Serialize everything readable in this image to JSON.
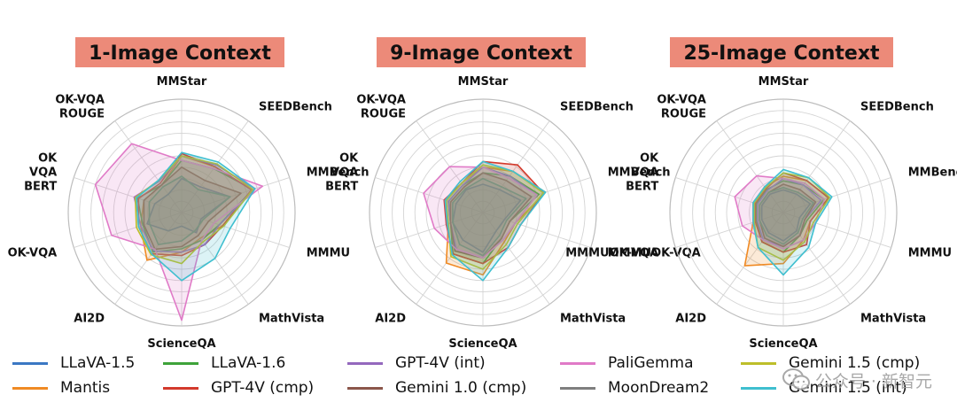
{
  "chart_data": [
    {
      "type": "radar",
      "title": "1-Image Context",
      "axes": [
        "MMStar",
        "SEEDBench",
        "MMBench",
        "MMMU",
        "MathVista",
        "ScienceQA",
        "AI2D",
        "OK-VQA",
        "OK\nVQA\nBERT",
        "OK-VQA\nROUGE"
      ],
      "rmax": 10,
      "series": [
        {
          "name": "LLaVA-1.5",
          "values": [
            3.0,
            2.8,
            4.5,
            1.8,
            2.2,
            1.2,
            2.0,
            3.2,
            2.5,
            2.0
          ]
        },
        {
          "name": "Mantis",
          "values": [
            5.0,
            5.0,
            6.5,
            3.8,
            2.8,
            3.5,
            5.2,
            3.8,
            3.5,
            3.0
          ]
        },
        {
          "name": "LLaVA-1.6",
          "values": [
            4.6,
            4.8,
            6.6,
            3.5,
            3.0,
            3.2,
            4.3,
            3.6,
            4.1,
            3.0
          ]
        },
        {
          "name": "GPT-4V (cmp)",
          "values": [
            5.2,
            5.0,
            6.5,
            3.8,
            3.5,
            3.8,
            4.5,
            4.0,
            4.0,
            3.2
          ]
        },
        {
          "name": "GPT-4V (int)",
          "values": [
            5.0,
            5.2,
            6.8,
            3.5,
            3.5,
            3.5,
            4.2,
            3.8,
            4.4,
            3.4
          ]
        },
        {
          "name": "Gemini 1.0 (cmp)",
          "values": [
            4.0,
            3.5,
            5.5,
            2.5,
            2.5,
            3.0,
            4.0,
            3.5,
            3.5,
            3.0
          ]
        },
        {
          "name": "PaliGemma",
          "values": [
            4.6,
            4.8,
            7.5,
            3.0,
            3.0,
            9.5,
            4.0,
            6.5,
            8.0,
            7.5
          ]
        },
        {
          "name": "MoonDream2",
          "values": [
            3.2,
            2.5,
            4.5,
            2.0,
            2.0,
            2.5,
            3.5,
            3.0,
            3.0,
            2.8
          ]
        },
        {
          "name": "Gemini 1.5 (cmp)",
          "values": [
            5.0,
            5.3,
            6.6,
            3.9,
            3.2,
            4.5,
            4.6,
            4.2,
            4.3,
            3.5
          ]
        },
        {
          "name": "Gemini 1.5 (int)",
          "values": [
            5.3,
            5.5,
            6.8,
            4.5,
            5.0,
            6.0,
            4.5,
            4.0,
            4.2,
            3.5
          ]
        }
      ]
    },
    {
      "type": "radar",
      "title": "9-Image Context",
      "axes": [
        "MMStar",
        "SEEDBench",
        "MMBench",
        "MMMUOK-VQA",
        "MathVista",
        "ScienceQA",
        "AI2D",
        "OK-VQA\nROUGE",
        "OK\nVQA\nBERT",
        "OK-VQA\nROUGE"
      ],
      "axes_visible": [
        "MMStar",
        "SEEDBench",
        "MMBench",
        "MMMUOK-VQA",
        "MathVista",
        "ScienceQA",
        "AI2D",
        "",
        "OK\nVQA\nBERT",
        "OK-VQA\nROUGE"
      ],
      "rmax": 10,
      "series": [
        {
          "name": "LLaVA-1.5",
          "values": [
            2.5,
            2.5,
            3.5,
            2.0,
            2.0,
            3.5,
            3.0,
            2.8,
            2.5,
            2.5
          ]
        },
        {
          "name": "Mantis",
          "values": [
            4.0,
            4.5,
            5.8,
            3.0,
            3.2,
            5.5,
            5.5,
            3.2,
            3.5,
            3.2
          ]
        },
        {
          "name": "LLaVA-1.6",
          "values": [
            3.5,
            4.0,
            5.2,
            2.5,
            2.8,
            4.5,
            4.5,
            3.0,
            3.2,
            3.0
          ]
        },
        {
          "name": "GPT-4V (cmp)",
          "values": [
            4.5,
            5.2,
            5.6,
            3.5,
            3.8,
            4.5,
            4.5,
            3.4,
            3.6,
            3.2
          ]
        },
        {
          "name": "GPT-4V (int)",
          "values": [
            4.0,
            4.0,
            5.0,
            3.0,
            3.0,
            4.0,
            4.0,
            3.0,
            3.2,
            3.0
          ]
        },
        {
          "name": "Gemini 1.0 (cmp)",
          "values": [
            3.5,
            3.5,
            4.5,
            2.5,
            2.8,
            4.0,
            4.2,
            3.0,
            3.0,
            2.8
          ]
        },
        {
          "name": "PaliGemma",
          "values": [
            4.0,
            3.8,
            5.0,
            3.0,
            3.0,
            4.0,
            4.0,
            4.5,
            5.5,
            5.0
          ]
        },
        {
          "name": "MoonDream2",
          "values": [
            3.0,
            2.8,
            4.0,
            2.2,
            2.5,
            3.8,
            3.5,
            2.8,
            2.8,
            2.6
          ]
        },
        {
          "name": "Gemini 1.5 (cmp)",
          "values": [
            4.2,
            4.5,
            5.6,
            3.2,
            3.5,
            5.0,
            4.8,
            3.2,
            3.4,
            3.2
          ]
        },
        {
          "name": "Gemini 1.5 (int)",
          "values": [
            4.5,
            4.5,
            5.8,
            3.5,
            3.8,
            6.0,
            4.6,
            3.3,
            3.5,
            3.4
          ]
        }
      ]
    },
    {
      "type": "radar",
      "title": "25-Image Context",
      "axes": [
        "MMStar",
        "SEEDBench",
        "MMBench",
        "MMMU",
        "MathVista",
        "ScienceQA",
        "AI2D",
        "OK-VQA",
        "OK\nVQA\nBERT",
        "OK-VQA\nROUGE"
      ],
      "axes_visible": [
        "MMStar",
        "SEEDBench",
        "MMBench",
        "MMMU",
        "MathVista",
        "ScienceQA",
        "AI2D",
        "MMMUOK-VQA",
        "OK\nVQA\nBERT",
        "OK-VQA\nROUGE"
      ],
      "rmax": 10,
      "series": [
        {
          "name": "LLaVA-1.5",
          "values": [
            2.0,
            2.0,
            2.5,
            1.5,
            2.0,
            2.5,
            2.2,
            2.0,
            2.0,
            2.0
          ]
        },
        {
          "name": "Mantis",
          "values": [
            3.2,
            3.5,
            4.2,
            2.5,
            3.0,
            4.5,
            5.8,
            2.8,
            2.8,
            2.8
          ]
        },
        {
          "name": "LLaVA-1.6",
          "values": [
            2.8,
            3.0,
            3.8,
            2.2,
            2.5,
            3.5,
            3.2,
            2.5,
            2.5,
            2.5
          ]
        },
        {
          "name": "GPT-4V (cmp)",
          "values": [
            3.5,
            3.5,
            4.2,
            2.5,
            3.5,
            3.5,
            3.2,
            2.6,
            2.6,
            2.6
          ]
        },
        {
          "name": "GPT-4V (int)",
          "values": [
            3.0,
            3.0,
            3.5,
            2.0,
            2.5,
            3.0,
            3.0,
            2.4,
            2.4,
            2.4
          ]
        },
        {
          "name": "Gemini 1.0 (cmp)",
          "values": [
            2.5,
            2.5,
            3.0,
            2.0,
            2.5,
            3.0,
            2.8,
            2.2,
            2.2,
            2.2
          ]
        },
        {
          "name": "PaliGemma",
          "values": [
            3.0,
            3.2,
            3.8,
            3.0,
            3.0,
            3.2,
            3.0,
            3.8,
            4.5,
            4.0
          ]
        },
        {
          "name": "MoonDream2",
          "values": [
            2.2,
            2.2,
            2.8,
            1.8,
            2.2,
            2.8,
            2.5,
            2.2,
            2.2,
            2.2
          ]
        },
        {
          "name": "Gemini 1.5 (cmp)",
          "values": [
            3.5,
            3.8,
            4.3,
            2.8,
            3.2,
            4.2,
            3.8,
            2.7,
            2.7,
            2.7
          ]
        },
        {
          "name": "Gemini 1.5 (int)",
          "values": [
            3.8,
            3.8,
            4.5,
            3.0,
            3.8,
            5.5,
            3.8,
            2.8,
            2.8,
            2.8
          ]
        }
      ]
    }
  ],
  "colors": {
    "LLaVA-1.5": "#3b78c3",
    "Mantis": "#f08a24",
    "LLaVA-1.6": "#3ea33a",
    "GPT-4V (cmp)": "#d33a2c",
    "GPT-4V (int)": "#9468bd",
    "Gemini 1.0 (cmp)": "#8b564b",
    "PaliGemma": "#e07ac7",
    "MoonDream2": "#7f7f7f",
    "Gemini 1.5 (cmp)": "#bdbe2a",
    "Gemini 1.5 (int)": "#3fbfcf"
  },
  "title_bg": "#ec8a79",
  "legend": [
    {
      "label": "LLaVA-1.5"
    },
    {
      "label": "Mantis"
    },
    {
      "label": "LLaVA-1.6"
    },
    {
      "label": "GPT-4V (cmp)"
    },
    {
      "label": "GPT-4V (int)"
    },
    {
      "label": "Gemini 1.0 (cmp)"
    },
    {
      "label": "PaliGemma"
    },
    {
      "label": "MoonDream2"
    },
    {
      "label": "Gemini 1.5 (cmp)"
    },
    {
      "label": "Gemini 1.5 (int)"
    }
  ],
  "watermark": {
    "icon": "wechat-icon",
    "text": "公众号 · 新智元"
  }
}
